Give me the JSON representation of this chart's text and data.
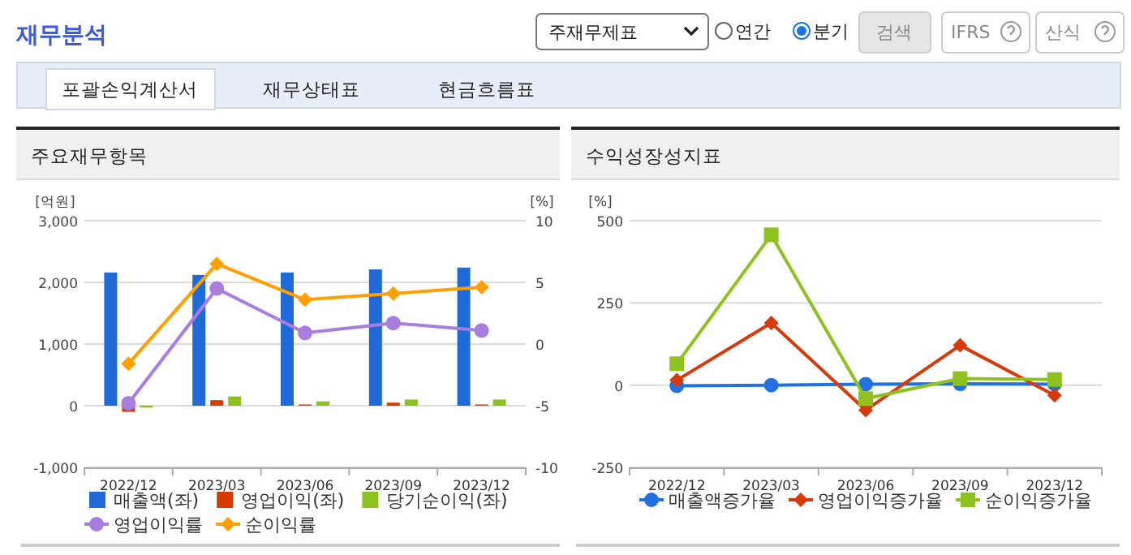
{
  "chart_data": [
    {
      "type": "other",
      "title": "재무분석",
      "annotations": [
        "주재무제표",
        "연간",
        "분기",
        "검색",
        "IFRS",
        "산식",
        "포괄손익계산서",
        "재무상태표",
        "현금흐름표"
      ]
    },
    {
      "type": "bar",
      "title": "주요재무항목",
      "ylabel": "[억원]",
      "y2label": "[%]",
      "categories": [
        "2022/12",
        "2023/03",
        "2023/06",
        "2023/09",
        "2023/12"
      ],
      "series": [
        {
          "name": "매출액(좌)",
          "type": "bar",
          "color": "#1f6ad8",
          "values": [
            2160,
            2120,
            2160,
            2210,
            2240
          ]
        },
        {
          "name": "영업이익(좌)",
          "type": "bar",
          "color": "#d83b01",
          "values": [
            -100,
            90,
            20,
            50,
            20
          ]
        },
        {
          "name": "당기순이익(좌)",
          "type": "bar",
          "color": "#8cc21e",
          "values": [
            -30,
            150,
            70,
            100,
            100
          ]
        },
        {
          "name": "영업이익률",
          "type": "line",
          "axis": "y2",
          "marker": "circle",
          "color": "#a77ee0",
          "values": [
            -4.8,
            4.5,
            0.9,
            1.7,
            1.1
          ]
        },
        {
          "name": "순이익률",
          "type": "line",
          "axis": "y2",
          "marker": "diamond",
          "color": "#ffa000",
          "values": [
            -1.6,
            6.5,
            3.6,
            4.1,
            4.6
          ]
        }
      ],
      "ylim": [
        -1000,
        3000
      ],
      "yticks": [
        {
          "value": -1000,
          "label": "-1,000"
        },
        0,
        {
          "value": 1000,
          "label": "1,000"
        },
        {
          "value": 2000,
          "label": "2,000"
        },
        {
          "value": 3000,
          "label": "3,000"
        }
      ],
      "y2lim": [
        -10,
        10
      ],
      "y2ticks": [
        -10,
        -5,
        0,
        5,
        10
      ],
      "grid": "y",
      "legend": "bottom"
    },
    {
      "type": "line",
      "title": "수익성장성지표",
      "ylabel": "[%]",
      "categories": [
        "2022/12",
        "2023/03",
        "2023/06",
        "2023/09",
        "2023/12"
      ],
      "series": [
        {
          "name": "매출액증가율",
          "marker": "circle",
          "color": "#2371e0",
          "values": [
            -2,
            0,
            3,
            4,
            3
          ]
        },
        {
          "name": "영업이익증가율",
          "marker": "diamond",
          "color": "#d63a0a",
          "values": [
            15,
            189,
            -76,
            121,
            -31
          ]
        },
        {
          "name": "순이익증가율",
          "marker": "square",
          "color": "#8dc21f",
          "values": [
            65,
            457,
            -41,
            20,
            17
          ]
        }
      ],
      "ylim": [
        -250,
        500
      ],
      "yticks": [
        -250,
        0,
        250,
        500
      ],
      "grid": "y",
      "legend": "bottom"
    }
  ]
}
